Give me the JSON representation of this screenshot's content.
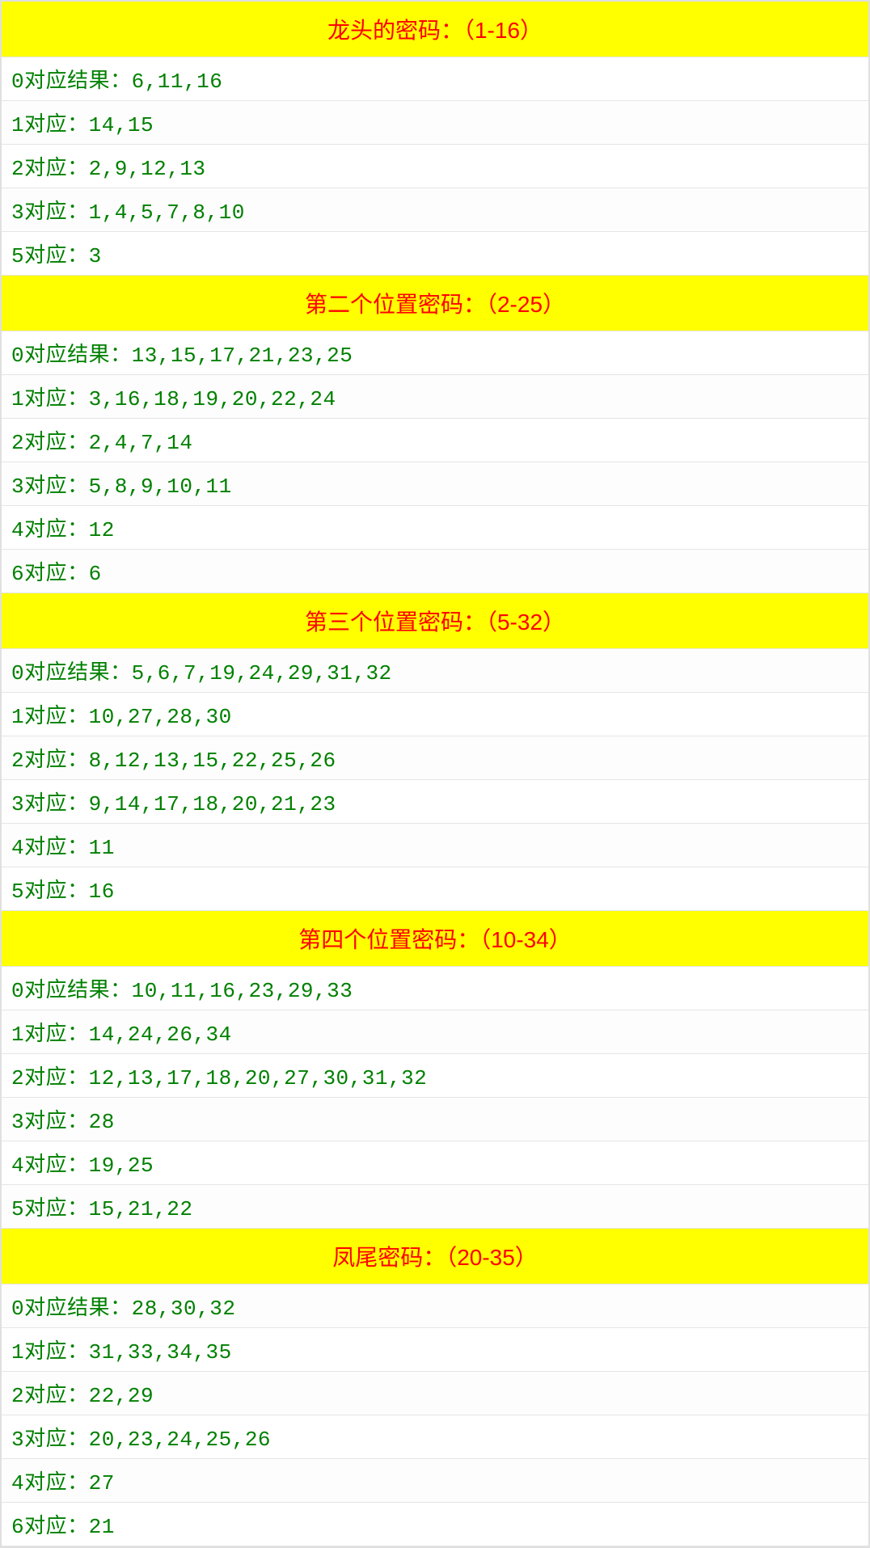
{
  "header_bg": "#ffff00",
  "header_color": "#ff0000",
  "row_color": "#008000",
  "sections": [
    {
      "title": "龙头的密码：（1-16）",
      "rows": [
        "0对应结果：6,11,16",
        "1对应：14,15",
        "2对应：2,9,12,13",
        "3对应：1,4,5,7,8,10",
        "5对应：3"
      ]
    },
    {
      "title": "第二个位置密码：（2-25）",
      "rows": [
        "0对应结果：13,15,17,21,23,25",
        "1对应：3,16,18,19,20,22,24",
        "2对应：2,4,7,14",
        "3对应：5,8,9,10,11",
        "4对应：12",
        "6对应：6"
      ]
    },
    {
      "title": "第三个位置密码：（5-32）",
      "rows": [
        "0对应结果：5,6,7,19,24,29,31,32",
        "1对应：10,27,28,30",
        "2对应：8,12,13,15,22,25,26",
        "3对应：9,14,17,18,20,21,23",
        "4对应：11",
        "5对应：16"
      ]
    },
    {
      "title": "第四个位置密码：（10-34）",
      "rows": [
        "0对应结果：10,11,16,23,29,33",
        "1对应：14,24,26,34",
        "2对应：12,13,17,18,20,27,30,31,32",
        "3对应：28",
        "4对应：19,25",
        "5对应：15,21,22"
      ]
    },
    {
      "title": "凤尾密码：（20-35）",
      "rows": [
        "0对应结果：28,30,32",
        "1对应：31,33,34,35",
        "2对应：22,29",
        "3对应：20,23,24,25,26",
        "4对应：27",
        "6对应：21"
      ]
    }
  ]
}
